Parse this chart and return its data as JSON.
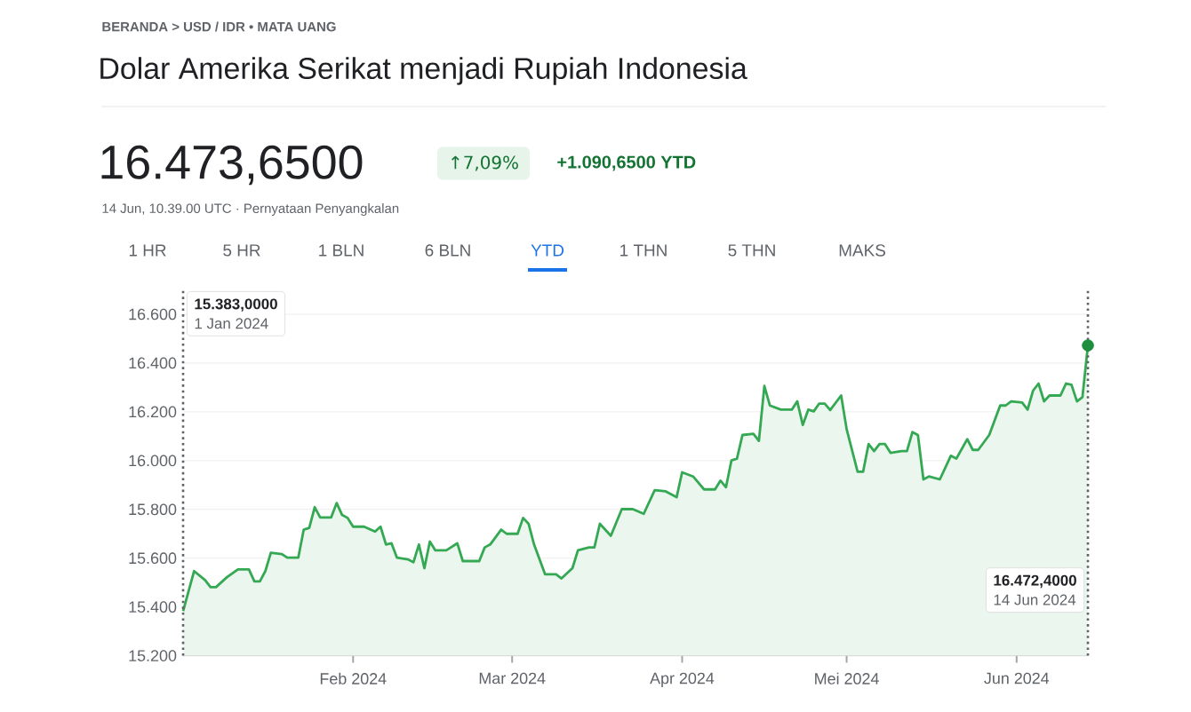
{
  "chart_data": {
    "type": "area",
    "title": "Dolar Amerika Serikat menjadi Rupiah Indonesia",
    "subtitle": "16.473,6500",
    "annotations": [
      "BERANDA > USD / IDR • MATA UANG",
      "↑7,09%",
      "+1.090,6500 YTD",
      "14 Jun, 10.39.00 UTC · Pernyataan Penyangkalan",
      "1 HR",
      "5 HR",
      "1 BLN",
      "6 BLN",
      "YTD",
      "1 THN",
      "5 THN",
      "MAKS",
      "15.383,0000",
      "1 Jan 2024",
      "16.472,4000",
      "14 Jun 2024"
    ],
    "series": [
      {
        "color": "#34a853",
        "x": [
          "2024-01-01",
          "2024-01-03",
          "2024-01-05",
          "2024-01-06",
          "2024-01-07",
          "2024-01-09",
          "2024-01-11",
          "2024-01-13",
          "2024-01-14",
          "2024-01-15",
          "2024-01-16",
          "2024-01-17",
          "2024-01-19",
          "2024-01-20",
          "2024-01-22",
          "2024-01-23",
          "2024-01-24",
          "2024-01-25",
          "2024-01-26",
          "2024-01-28",
          "2024-01-29",
          "2024-01-30",
          "2024-01-31",
          "2024-02-01",
          "2024-02-03",
          "2024-02-05",
          "2024-02-06",
          "2024-02-07",
          "2024-02-08",
          "2024-02-09",
          "2024-02-11",
          "2024-02-12",
          "2024-02-13",
          "2024-02-14",
          "2024-02-15",
          "2024-02-16",
          "2024-02-18",
          "2024-02-20",
          "2024-02-21",
          "2024-02-24",
          "2024-02-25",
          "2024-02-26",
          "2024-02-28",
          "2024-02-29",
          "2024-03-02",
          "2024-03-03",
          "2024-03-04",
          "2024-03-05",
          "2024-03-07",
          "2024-03-09",
          "2024-03-10",
          "2024-03-12",
          "2024-03-13",
          "2024-03-15",
          "2024-03-16",
          "2024-03-17",
          "2024-03-19",
          "2024-03-21",
          "2024-03-23",
          "2024-03-25",
          "2024-03-27",
          "2024-03-29",
          "2024-03-31",
          "2024-04-01",
          "2024-04-03",
          "2024-04-05",
          "2024-04-07",
          "2024-04-08",
          "2024-04-09",
          "2024-04-10",
          "2024-04-11",
          "2024-04-12",
          "2024-04-14",
          "2024-04-15",
          "2024-04-16",
          "2024-04-17",
          "2024-04-19",
          "2024-04-21",
          "2024-04-22",
          "2024-04-23",
          "2024-04-24",
          "2024-04-25",
          "2024-04-26",
          "2024-04-27",
          "2024-04-28",
          "2024-04-30",
          "2024-05-01",
          "2024-05-03",
          "2024-05-04",
          "2024-05-05",
          "2024-05-06",
          "2024-05-07",
          "2024-05-08",
          "2024-05-09",
          "2024-05-11",
          "2024-05-12",
          "2024-05-13",
          "2024-05-14",
          "2024-05-15",
          "2024-05-16",
          "2024-05-18",
          "2024-05-20",
          "2024-05-21",
          "2024-05-23",
          "2024-05-24",
          "2024-05-25",
          "2024-05-27",
          "2024-05-29",
          "2024-05-30",
          "2024-05-31",
          "2024-06-02",
          "2024-06-03",
          "2024-06-04",
          "2024-06-05",
          "2024-06-06",
          "2024-06-07",
          "2024-06-09",
          "2024-06-10",
          "2024-06-11",
          "2024-06-12",
          "2024-06-13",
          "2024-06-14"
        ],
        "values": [
          15383,
          15547,
          15510,
          15481,
          15481,
          15522,
          15554,
          15554,
          15505,
          15505,
          15547,
          15622,
          15617,
          15602,
          15602,
          15717,
          15724,
          15809,
          15767,
          15767,
          15826,
          15777,
          15765,
          15729,
          15729,
          15709,
          15729,
          15656,
          15661,
          15602,
          15595,
          15583,
          15656,
          15559,
          15668,
          15632,
          15632,
          15661,
          15588,
          15588,
          15644,
          15656,
          15717,
          15700,
          15700,
          15765,
          15741,
          15656,
          15534,
          15534,
          15517,
          15559,
          15632,
          15644,
          15644,
          15741,
          15692,
          15801,
          15801,
          15782,
          15879,
          15874,
          15850,
          15952,
          15935,
          15882,
          15882,
          15918,
          15891,
          16001,
          16008,
          16105,
          16110,
          16081,
          16306,
          16226,
          16209,
          16209,
          16243,
          16146,
          16209,
          16202,
          16234,
          16234,
          16207,
          16267,
          16129,
          15954,
          15954,
          16068,
          16039,
          16068,
          16068,
          16032,
          16039,
          16039,
          16117,
          16105,
          15923,
          15935,
          15923,
          16020,
          16008,
          16088,
          16044,
          16044,
          16105,
          16226,
          16226,
          16243,
          16238,
          16209,
          16287,
          16316,
          16243,
          16267,
          16267,
          16316,
          16311,
          16243,
          16260,
          16472.4
        ]
      },
      {
        "type": "scatter",
        "color": "#1e8e3e",
        "marker": "circle",
        "x": [
          "2024-06-14"
        ],
        "values": [
          16472.4
        ]
      }
    ],
    "ref_lines": [
      {
        "axis": "x",
        "value": "2024-01-01",
        "color": "#5f6368",
        "line_style": "dotted"
      },
      {
        "axis": "x",
        "value": "2024-06-14",
        "color": "#5f6368",
        "line_style": "dotted"
      }
    ],
    "xlim": [
      "2024-01-01",
      "2024-06-14"
    ],
    "xticks": [
      {
        "value": "2024-02-01",
        "label": "Feb 2024"
      },
      {
        "value": "2024-03-01",
        "label": "Mar 2024"
      },
      {
        "value": "2024-04-01",
        "label": "Apr 2024"
      },
      {
        "value": "2024-05-01",
        "label": "Mei 2024"
      },
      {
        "value": "2024-06-01",
        "label": "Jun 2024"
      }
    ],
    "ylim": [
      15200,
      16700
    ],
    "yticks": [
      {
        "value": 15200,
        "label": "15.200"
      },
      {
        "value": 15400,
        "label": "15.400"
      },
      {
        "value": 15600,
        "label": "15.600"
      },
      {
        "value": 15800,
        "label": "15.800"
      },
      {
        "value": 16000,
        "label": "16.000"
      },
      {
        "value": 16200,
        "label": "16.200"
      },
      {
        "value": 16400,
        "label": "16.400"
      },
      {
        "value": 16600,
        "label": "16.600"
      }
    ],
    "grid": "y"
  }
}
